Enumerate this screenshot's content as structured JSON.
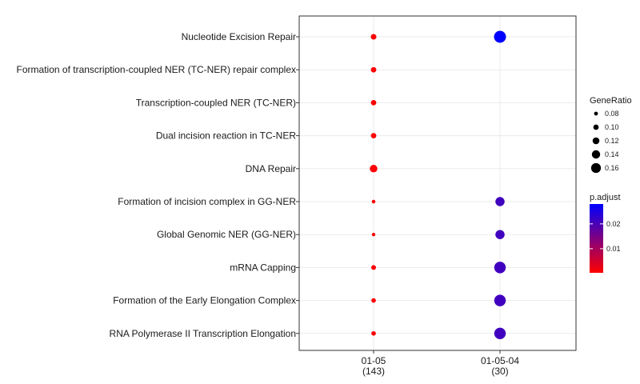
{
  "chart_data": {
    "type": "scatter",
    "columns": [
      {
        "label": "01-05",
        "count": "(143)"
      },
      {
        "label": "01-05-04",
        "count": "(30)"
      }
    ],
    "terms": [
      "Nucleotide Excision Repair",
      "Formation of transcription-coupled NER (TC-NER) repair complex",
      "Transcription-coupled NER (TC-NER)",
      "Dual incision reaction in TC-NER",
      "DNA Repair",
      "Formation of incision complex in GG-NER",
      "Global Genomic NER (GG-NER)",
      "mRNA Capping",
      "Formation of the Early Elongation Complex",
      "RNA Polymerase II Transcription Elongation"
    ],
    "points": [
      {
        "term": "Nucleotide Excision Repair",
        "column": "01-05",
        "gene_ratio": 0.093,
        "p_adjust": 0.0006
      },
      {
        "term": "Nucleotide Excision Repair",
        "column": "01-05-04",
        "gene_ratio": 0.165,
        "p_adjust": 0.028
      },
      {
        "term": "Formation of transcription-coupled NER (TC-NER) repair complex",
        "column": "01-05",
        "gene_ratio": 0.09,
        "p_adjust": 0.0006
      },
      {
        "term": "Transcription-coupled NER (TC-NER)",
        "column": "01-05",
        "gene_ratio": 0.09,
        "p_adjust": 0.0006
      },
      {
        "term": "Dual incision reaction in TC-NER",
        "column": "01-05",
        "gene_ratio": 0.09,
        "p_adjust": 0.0006
      },
      {
        "term": "DNA Repair",
        "column": "01-05",
        "gene_ratio": 0.115,
        "p_adjust": 0.0006
      },
      {
        "term": "Formation of incision complex in GG-NER",
        "column": "01-05",
        "gene_ratio": 0.07,
        "p_adjust": 0.001
      },
      {
        "term": "Formation of incision complex in GG-NER",
        "column": "01-05-04",
        "gene_ratio": 0.133,
        "p_adjust": 0.021
      },
      {
        "term": "Global Genomic NER (GG-NER)",
        "column": "01-05",
        "gene_ratio": 0.068,
        "p_adjust": 0.001
      },
      {
        "term": "Global Genomic NER (GG-NER)",
        "column": "01-05-04",
        "gene_ratio": 0.133,
        "p_adjust": 0.021
      },
      {
        "term": "mRNA Capping",
        "column": "01-05",
        "gene_ratio": 0.083,
        "p_adjust": 0.0006
      },
      {
        "term": "mRNA Capping",
        "column": "01-05-04",
        "gene_ratio": 0.16,
        "p_adjust": 0.021
      },
      {
        "term": "Formation of the Early Elongation Complex",
        "column": "01-05",
        "gene_ratio": 0.08,
        "p_adjust": 0.0006
      },
      {
        "term": "Formation of the Early Elongation Complex",
        "column": "01-05-04",
        "gene_ratio": 0.16,
        "p_adjust": 0.021
      },
      {
        "term": "RNA Polymerase II Transcription Elongation",
        "column": "01-05",
        "gene_ratio": 0.08,
        "p_adjust": 0.0006
      },
      {
        "term": "RNA Polymerase II Transcription Elongation",
        "column": "01-05-04",
        "gene_ratio": 0.16,
        "p_adjust": 0.021
      }
    ],
    "size_legend": {
      "title": "GeneRatio",
      "breaks": [
        0.08,
        0.1,
        0.12,
        0.14,
        0.16
      ],
      "labels": [
        "0.08",
        "0.10",
        "0.12",
        "0.14",
        "0.16"
      ]
    },
    "color_legend": {
      "title": "p.adjust",
      "range": [
        0.0003,
        0.028
      ],
      "low_color": "#ff0000",
      "high_color": "#0000ff",
      "breaks": [
        0.01,
        0.02
      ],
      "labels": [
        "0.01",
        "0.02"
      ]
    },
    "grid": true,
    "legend_position": "right"
  }
}
